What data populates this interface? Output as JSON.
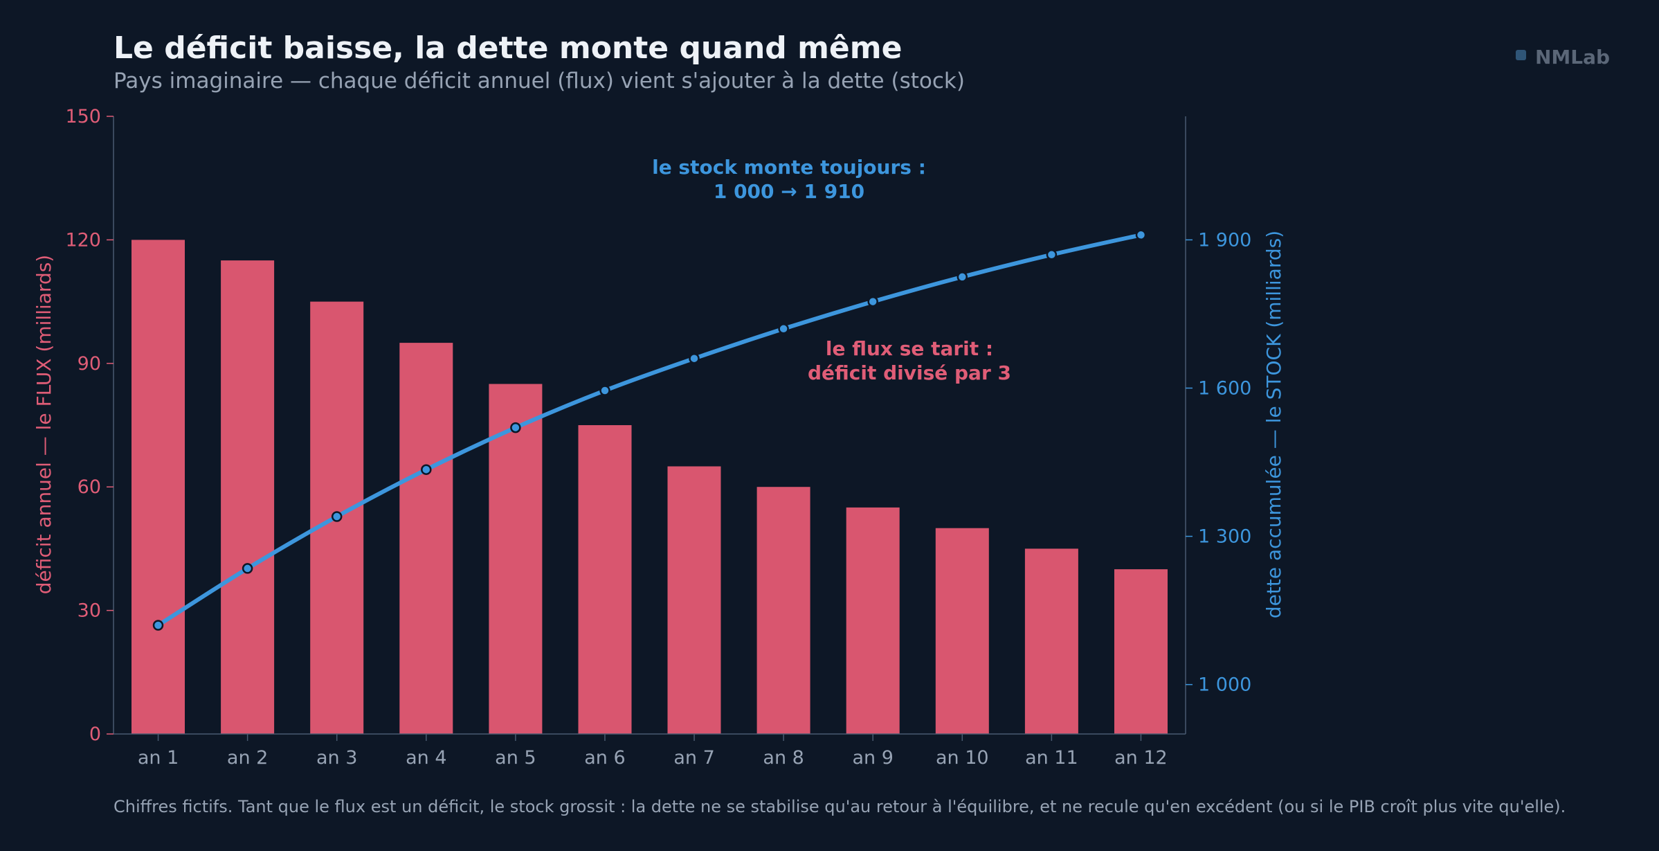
{
  "brand": {
    "name": "NMLab",
    "color": "#2f5577"
  },
  "colors": {
    "background": "#0d1726",
    "flux": "#d9566f",
    "flux_text": "#e05d77",
    "stock": "#3d96dd",
    "axis": "#4a5a70",
    "muted_text": "#97a3b4"
  },
  "chart_data": {
    "type": "bar",
    "title": "Le déficit baisse, la dette monte quand même",
    "subtitle": "Pays imaginaire — chaque déficit annuel (flux) vient s'ajouter à la dette (stock)",
    "categories": [
      "an 1",
      "an 2",
      "an 3",
      "an 4",
      "an 5",
      "an 6",
      "an 7",
      "an 8",
      "an 9",
      "an 10",
      "an 11",
      "an 12"
    ],
    "series": [
      {
        "type": "bar",
        "axis": "left",
        "values": [
          120,
          115,
          105,
          95,
          85,
          75,
          65,
          60,
          55,
          50,
          45,
          40
        ]
      },
      {
        "type": "line",
        "axis": "right",
        "values": [
          1120,
          1235,
          1340,
          1435,
          1520,
          1595,
          1660,
          1720,
          1775,
          1825,
          1870,
          1910
        ]
      }
    ],
    "ylabel_left": "déficit annuel — le FLUX (milliards)",
    "ylabel_right": "dette accumulée — le STOCK (milliards)",
    "ylim_left": [
      0,
      150
    ],
    "yticks_left": [
      0,
      30,
      60,
      90,
      120,
      150
    ],
    "ylim_right": [
      900,
      2150
    ],
    "yticks_right": [
      1000,
      1300,
      1600,
      1900
    ],
    "ytick_labels_right": [
      "1 000",
      "1 300",
      "1 600",
      "1 900"
    ],
    "grid": false,
    "legend": "none",
    "annotations": [
      {
        "id": "stock",
        "lines": [
          "le stock monte toujours :",
          "1 000 → 1 910"
        ]
      },
      {
        "id": "flux",
        "lines": [
          "le flux se tarit :",
          "déficit divisé par 3"
        ]
      }
    ],
    "footnote": "Chiffres fictifs. Tant que le flux est un déficit, le stock grossit : la dette ne se stabilise qu'au retour à l'équilibre, et ne recule qu'en excédent (ou si le PIB croît plus vite qu'elle)."
  }
}
